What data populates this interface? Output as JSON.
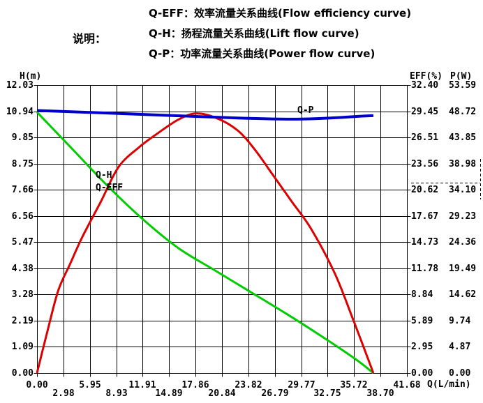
{
  "legend": {
    "title": "说明：",
    "items": [
      {
        "id": "qeff",
        "text": "Q-EFF：效率流量关系曲线(Flow efficiency curve)"
      },
      {
        "id": "qh",
        "text": "Q-H：扬程流量关系曲线(Lift flow curve)"
      },
      {
        "id": "qp",
        "text": "Q-P：功率流量关系曲线(Power flow curve)"
      }
    ]
  },
  "axes": {
    "left_title": "H(m)",
    "right_title_eff": "EFF(%)",
    "right_title_p": "P(W)",
    "x_unit": "Q(L/min)"
  },
  "curve_labels": {
    "qh": "Q-H",
    "qeff": "Q-EFF",
    "qp": "Q-P"
  },
  "colors": {
    "qh": "#00cc00",
    "qeff": "#dd0000",
    "qp": "#0000cc",
    "grid": "#000000",
    "text": "#000000",
    "background": "#ffffff"
  },
  "chart_data": {
    "type": "line",
    "title": "",
    "grid": {
      "x_divisions": 14,
      "y_divisions": 11,
      "grid_on": true
    },
    "x_axis": {
      "label": "Q(L/min)",
      "min": 0,
      "max": 41.68,
      "tick_labels": [
        "0.00",
        "2.98",
        "5.95",
        "8.93",
        "11.91",
        "14.89",
        "17.86",
        "20.84",
        "23.82",
        "26.79",
        "29.77",
        "32.75",
        "35.72",
        "38.70",
        "41.68"
      ]
    },
    "y_axes": [
      {
        "id": "H",
        "label": "H(m)",
        "min": 0,
        "max": 12.03,
        "tick_labels": [
          "12.03",
          "10.94",
          "9.85",
          "8.75",
          "7.66",
          "6.56",
          "5.47",
          "4.38",
          "3.28",
          "2.19",
          "1.09",
          "0.00"
        ]
      },
      {
        "id": "EFF",
        "label": "EFF(%)",
        "min": 0,
        "max": 32.4,
        "tick_labels": [
          "32.40",
          "29.45",
          "26.51",
          "23.56",
          "20.62",
          "17.67",
          "14.73",
          "11.78",
          "8.84",
          "5.89",
          "2.95",
          "0.00"
        ]
      },
      {
        "id": "P",
        "label": "P(W)",
        "min": 0,
        "max": 53.59,
        "tick_labels": [
          "53.59",
          "48.72",
          "43.85",
          "38.98",
          "34.10",
          "29.23",
          "24.36",
          "19.49",
          "14.62",
          "9.74",
          "4.87",
          "0.00"
        ]
      }
    ],
    "series": [
      {
        "name": "Q-H",
        "axis": "H",
        "color": "#00cc00",
        "x": [
          0,
          4,
          8,
          12,
          16,
          20,
          24,
          28,
          32,
          36,
          37.9
        ],
        "values": [
          10.9,
          9.35,
          7.8,
          6.4,
          5.2,
          4.3,
          3.4,
          2.5,
          1.55,
          0.55,
          0
        ]
      },
      {
        "name": "Q-EFF",
        "axis": "EFF",
        "color": "#dd0000",
        "x": [
          0,
          1.2,
          2.4,
          3.7,
          5.1,
          7.2,
          9.2,
          11.5,
          13.5,
          15.9,
          17.9,
          20.2,
          22.6,
          24.5,
          26.5,
          28.7,
          30.9,
          33.6,
          35.7,
          37.9
        ],
        "values": [
          0,
          4.8,
          9.3,
          12.2,
          15.3,
          19.3,
          23.2,
          25.4,
          26.9,
          28.5,
          29.2,
          28.7,
          27.3,
          25.2,
          22.4,
          19.3,
          16.2,
          11.1,
          5.8,
          0
        ]
      },
      {
        "name": "Q-P",
        "axis": "P",
        "color": "#0000cc",
        "x": [
          0,
          7.6,
          15.5,
          22.6,
          28.9,
          33.6,
          36,
          37.9
        ],
        "values": [
          48.85,
          48.4,
          47.9,
          47.45,
          47.25,
          47.5,
          47.75,
          47.9
        ]
      }
    ],
    "annotations": [
      {
        "type": "dashed-right-marker",
        "axis": "EFF",
        "value": 21.4,
        "value_span": [
          19.5,
          24.1
        ]
      }
    ]
  }
}
